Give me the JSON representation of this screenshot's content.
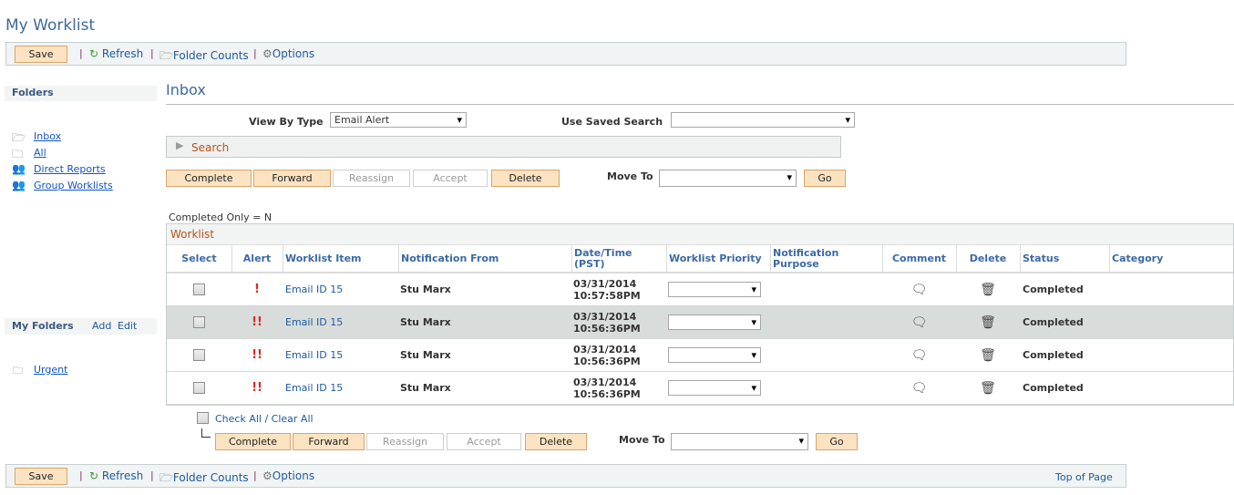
{
  "page_title": "My Worklist",
  "toolbar": {
    "save": "Save",
    "refresh": "Refresh",
    "folder_counts": "Folder Counts",
    "options": "Options",
    "top_of_page": "Top of Page"
  },
  "sidebar": {
    "folders_heading": "Folders",
    "folders": [
      {
        "label": "Inbox",
        "icon": "open-folder-icon"
      },
      {
        "label": "All",
        "icon": "folder-icon"
      },
      {
        "label": "Direct Reports",
        "icon": "group-folder-icon"
      },
      {
        "label": "Group Worklists",
        "icon": "group-folder-icon"
      }
    ],
    "my_folders_heading": "My Folders",
    "add": "Add",
    "edit": "Edit",
    "my_folders": [
      {
        "label": "Urgent",
        "icon": "folder-icon"
      }
    ]
  },
  "main": {
    "heading": "Inbox",
    "view_by_type_label": "View By Type",
    "view_by_type_value": "Email Alert",
    "saved_search_label": "Use Saved Search",
    "saved_search_value": "",
    "search_label": "Search",
    "actions": {
      "complete": "Complete",
      "forward": "Forward",
      "reassign": "Reassign",
      "accept": "Accept",
      "delete": "Delete",
      "move_to": "Move To",
      "move_to_value": "",
      "go": "Go"
    },
    "completed_only": "Completed Only = N",
    "grid_title": "Worklist",
    "columns": [
      "Select",
      "Alert",
      "Worklist Item",
      "Notification From",
      "Date/Time (PST)",
      "Worklist Priority",
      "Notification Purpose",
      "Comment",
      "Delete",
      "Status",
      "Category"
    ],
    "rows": [
      {
        "alert": "!",
        "item": "Email ID 15",
        "from": "Stu Marx",
        "date": "03/31/2014",
        "time": "10:57:58PM",
        "priority": "",
        "purpose": "",
        "status": "Completed",
        "category": "",
        "selected": false
      },
      {
        "alert": "!!",
        "item": "Email ID 15",
        "from": "Stu Marx",
        "date": "03/31/2014",
        "time": "10:56:36PM",
        "priority": "",
        "purpose": "",
        "status": "Completed",
        "category": "",
        "selected": false
      },
      {
        "alert": "!!",
        "item": "Email ID 15",
        "from": "Stu Marx",
        "date": "03/31/2014",
        "time": "10:56:36PM",
        "priority": "",
        "purpose": "",
        "status": "Completed",
        "category": "",
        "selected": false
      },
      {
        "alert": "!!",
        "item": "Email ID 15",
        "from": "Stu Marx",
        "date": "03/31/2014",
        "time": "10:56:36PM",
        "priority": "",
        "purpose": "",
        "status": "Completed",
        "category": "",
        "selected": false
      }
    ],
    "check_all": "Check All / Clear All"
  },
  "colors": {
    "accent": "#3e6a98",
    "button": "#fbe3c2",
    "alert": "#d62b2b",
    "highlight_row": "#d8dcdb"
  }
}
